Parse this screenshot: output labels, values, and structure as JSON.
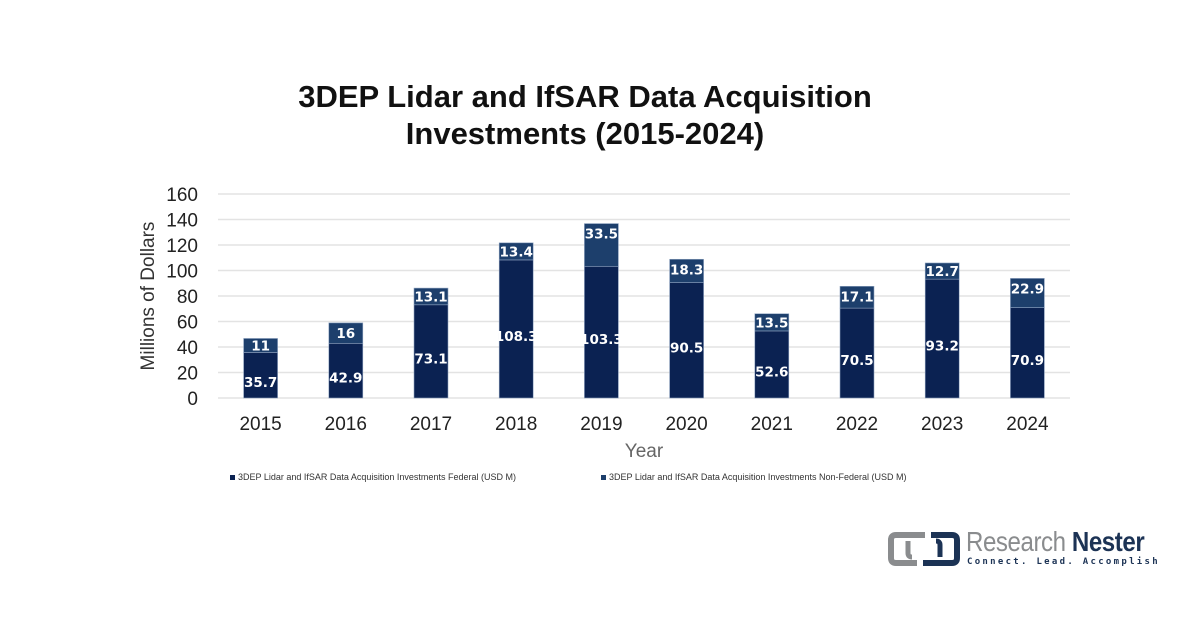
{
  "chart_data": {
    "type": "bar",
    "stacked": true,
    "title_lines": [
      "3DEP Lidar and IfSAR Data Acquisition",
      "Investments (2015-2024)"
    ],
    "title": "3DEP Lidar and IfSAR Data Acquisition Investments (2015-2024)",
    "xlabel": "Year",
    "ylabel": "Millions of Dollars",
    "ylim": [
      0,
      160
    ],
    "yticks": [
      0,
      20,
      40,
      60,
      80,
      100,
      120,
      140,
      160
    ],
    "grid": true,
    "legend_position": "bottom",
    "categories": [
      "2015",
      "2016",
      "2017",
      "2018",
      "2019",
      "2020",
      "2021",
      "2022",
      "2023",
      "2024"
    ],
    "series": [
      {
        "name": "3DEP Lidar and IfSAR Data Acquisition Investments Federal (USD M)",
        "color": "#0b2252",
        "values": [
          35.7,
          42.9,
          73.1,
          108.3,
          103.3,
          90.5,
          52.6,
          70.5,
          93.2,
          70.9
        ]
      },
      {
        "name": "3DEP Lidar and IfSAR Data Acquisition Investments Non-Federal (USD M)",
        "color": "#1d3f6c",
        "values": [
          11,
          16,
          13.1,
          13.4,
          33.5,
          18.3,
          13.5,
          17.1,
          12.7,
          22.9
        ]
      }
    ]
  },
  "logo": {
    "brand_first": "Research",
    "brand_second": "Nester",
    "tagline": "Connect. Lead. Accomplish"
  }
}
